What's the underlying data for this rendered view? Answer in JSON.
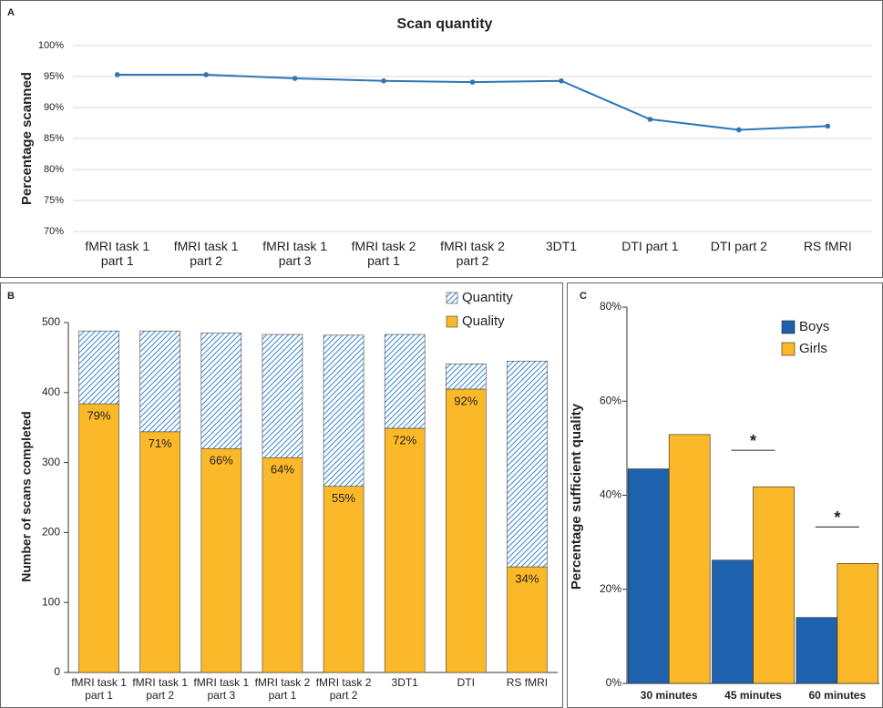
{
  "chart_data": [
    {
      "type": "line",
      "panel_label": "A",
      "title": "Scan quantity",
      "y_label": "Percentage scanned",
      "categories": [
        "fMRI task 1 part 1",
        "fMRI task 1 part 2",
        "fMRI task 1 part 3",
        "fMRI task 2 part 1",
        "fMRI task 2 part 2",
        "3DT1",
        "DTI part 1",
        "DTI part 2",
        "RS fMRI"
      ],
      "values": [
        95.3,
        95.3,
        94.7,
        94.3,
        94.1,
        94.3,
        88.1,
        86.4,
        87.0
      ],
      "color": "#2e75b6",
      "grid": true,
      "ylim": [
        70,
        100
      ],
      "yticks": [
        {
          "value": 70,
          "label": "70%"
        },
        {
          "value": 75,
          "label": "75%"
        },
        {
          "value": 80,
          "label": "80%"
        },
        {
          "value": 85,
          "label": "85%"
        },
        {
          "value": 90,
          "label": "90%"
        },
        {
          "value": 95,
          "label": "95%"
        },
        {
          "value": 100,
          "label": "100%"
        }
      ]
    },
    {
      "type": "stacked_bar",
      "panel_label": "B",
      "y_label": "Number of scans completed",
      "categories": [
        "fMRI task 1 part 1",
        "fMRI task 1 part 2",
        "fMRI task 1 part 3",
        "fMRI task 2 part 1",
        "fMRI task 2 part 2",
        "3DT1",
        "DTI",
        "RS fMRI"
      ],
      "series": [
        {
          "name": "Quality",
          "color": "#fbb829",
          "values": [
            384,
            344,
            320,
            307,
            266,
            349,
            405,
            151
          ],
          "percent_labels": [
            "79%",
            "71%",
            "66%",
            "64%",
            "55%",
            "72%",
            "92%",
            "34%"
          ]
        },
        {
          "name": "Quantity",
          "color": "#3b86d0",
          "hatch": true,
          "values": [
            104,
            144,
            165,
            176,
            216,
            134,
            36,
            294
          ]
        }
      ],
      "legend": "top-right",
      "ylim": [
        0,
        500
      ],
      "yticks": [
        0,
        100,
        200,
        300,
        400,
        500
      ]
    },
    {
      "type": "grouped_bar",
      "panel_label": "C",
      "y_label": "Percentage sufficient quality",
      "categories": [
        "30 minutes",
        "45 minutes",
        "60 minutes"
      ],
      "series": [
        {
          "name": "Boys",
          "color": "#1e61ad",
          "values": [
            45.6,
            26.2,
            14.0
          ]
        },
        {
          "name": "Girls",
          "color": "#fbb829",
          "values": [
            52.9,
            41.8,
            25.5
          ]
        }
      ],
      "annotations": [
        {
          "text": "*",
          "category": "45 minutes"
        },
        {
          "text": "*",
          "category": "60 minutes"
        }
      ],
      "legend": "top-right",
      "ylim": [
        0,
        80
      ],
      "yticks": [
        {
          "value": 0,
          "label": "0%"
        },
        {
          "value": 20,
          "label": "20%"
        },
        {
          "value": 40,
          "label": "40%"
        },
        {
          "value": 60,
          "label": "60%"
        },
        {
          "value": 80,
          "label": "80%"
        }
      ]
    }
  ]
}
